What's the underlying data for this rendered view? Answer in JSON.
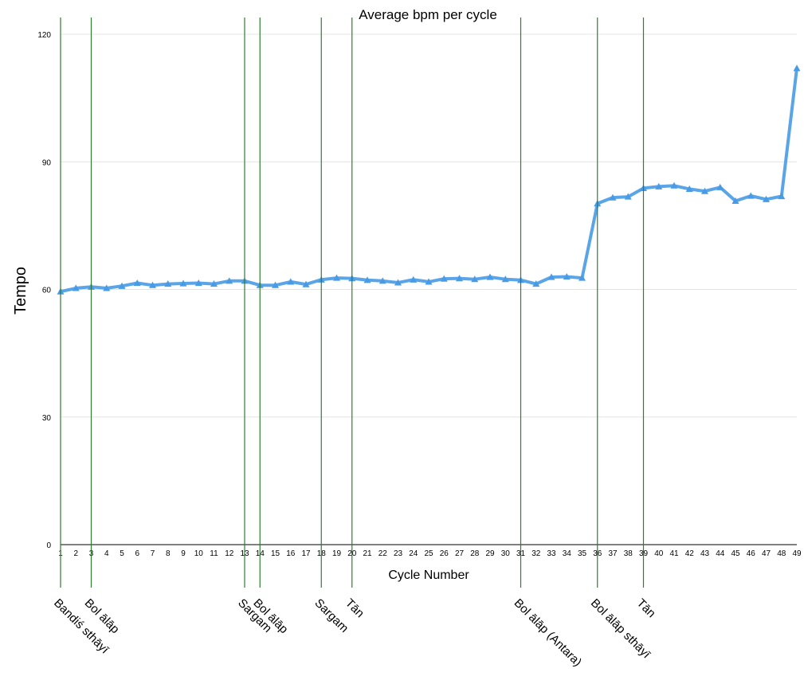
{
  "chart_data": {
    "type": "line",
    "title": "Average bpm per cycle",
    "xlabel": "Cycle Number",
    "ylabel": "Tempo",
    "ylim": [
      0,
      120
    ],
    "yticks": [
      0,
      30,
      60,
      90,
      120
    ],
    "grid": true,
    "legend": "none",
    "colors": {
      "series": "#5aa5e8",
      "markers": "#4a9be6",
      "grid": "#e4e4e4",
      "section_lines": "#2e7d32",
      "axis": "#000000"
    },
    "x": [
      1,
      2,
      3,
      4,
      5,
      6,
      7,
      8,
      9,
      10,
      11,
      12,
      13,
      14,
      15,
      16,
      17,
      18,
      19,
      20,
      21,
      22,
      23,
      24,
      25,
      26,
      27,
      28,
      29,
      30,
      31,
      32,
      33,
      34,
      35,
      36,
      37,
      38,
      39,
      40,
      41,
      42,
      43,
      44,
      45,
      46,
      47,
      48,
      49
    ],
    "series": [
      {
        "values": [
          59.5,
          60.3,
          60.6,
          60.3,
          60.8,
          61.5,
          61.0,
          61.3,
          61.4,
          61.5,
          61.3,
          62.0,
          62.0,
          61.0,
          61.0,
          61.8,
          61.2,
          62.3,
          62.7,
          62.6,
          62.2,
          62.0,
          61.6,
          62.3,
          61.8,
          62.5,
          62.6,
          62.4,
          62.9,
          62.4,
          62.2,
          61.3,
          62.9,
          63.0,
          62.7,
          80.2,
          81.6,
          81.8,
          83.8,
          84.2,
          84.4,
          83.6,
          83.1,
          84.0,
          80.8,
          82.0,
          81.2,
          81.9,
          112.0
        ]
      }
    ],
    "annotations": [
      {
        "x": 1,
        "label": "Bandiś sthāyī"
      },
      {
        "x": 3,
        "label": "Bol ālāp"
      },
      {
        "x": 13,
        "label": "Sargam"
      },
      {
        "x": 14,
        "label": "Bol ālāp"
      },
      {
        "x": 18,
        "label": "Sargam"
      },
      {
        "x": 20,
        "label": "Tān"
      },
      {
        "x": 31,
        "label": "Bol ālāp (Antara)"
      },
      {
        "x": 36,
        "label": "Bol ālāp sthāyī"
      },
      {
        "x": 39,
        "label": "Tān"
      }
    ]
  }
}
